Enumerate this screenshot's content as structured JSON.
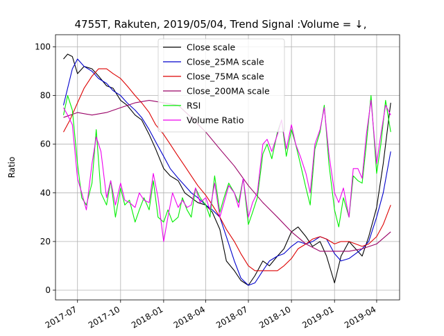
{
  "chart_data": {
    "type": "line",
    "title": "4755T, Rakuten, 2019/05/04, Trend Signal :Volume = ↓,",
    "xlabel": "",
    "ylabel": "Ratio",
    "xlim": [
      "2017-05-15",
      "2019-05-20"
    ],
    "ylim": [
      -4,
      105
    ],
    "x_ticks": [
      {
        "date": "2017-07-01",
        "label": "2017-07"
      },
      {
        "date": "2017-10-01",
        "label": "2017-10"
      },
      {
        "date": "2018-01-01",
        "label": "2018-01"
      },
      {
        "date": "2018-04-01",
        "label": "2018-04"
      },
      {
        "date": "2018-07-01",
        "label": "2018-07"
      },
      {
        "date": "2018-10-01",
        "label": "2018-10"
      },
      {
        "date": "2019-01-01",
        "label": "2019-01"
      },
      {
        "date": "2019-04-01",
        "label": "2019-04"
      }
    ],
    "y_ticks": [
      0,
      20,
      40,
      60,
      80,
      100
    ],
    "grid": true,
    "legend_position": "top-center",
    "series": [
      {
        "name": "Close scale",
        "color": "#000000",
        "x": [
          "2017-06-01",
          "2017-06-10",
          "2017-06-20",
          "2017-07-01",
          "2017-07-15",
          "2017-08-01",
          "2017-08-15",
          "2017-09-01",
          "2017-09-15",
          "2017-10-01",
          "2017-10-15",
          "2017-11-01",
          "2017-11-15",
          "2017-12-01",
          "2017-12-15",
          "2018-01-01",
          "2018-01-15",
          "2018-02-01",
          "2018-02-15",
          "2018-03-01",
          "2018-03-15",
          "2018-04-01",
          "2018-04-15",
          "2018-05-01",
          "2018-05-15",
          "2018-06-01",
          "2018-06-15",
          "2018-07-01",
          "2018-07-15",
          "2018-08-01",
          "2018-08-15",
          "2018-09-01",
          "2018-09-15",
          "2018-10-01",
          "2018-10-15",
          "2018-11-01",
          "2018-11-15",
          "2018-12-01",
          "2018-12-15",
          "2019-01-01",
          "2019-01-15",
          "2019-02-01",
          "2019-02-15",
          "2019-03-01",
          "2019-03-15",
          "2019-04-01",
          "2019-04-15",
          "2019-05-01"
        ],
        "y": [
          95,
          97,
          96,
          89,
          92,
          91,
          88,
          84,
          83,
          78,
          76,
          72,
          70,
          64,
          58,
          50,
          47,
          45,
          40,
          38,
          36,
          35,
          32,
          25,
          12,
          8,
          4,
          2,
          6,
          12,
          10,
          14,
          17,
          24,
          26,
          22,
          18,
          20,
          14,
          3,
          14,
          20,
          17,
          14,
          22,
          34,
          52,
          77
        ]
      },
      {
        "name": "Close_25MA scale",
        "color": "#0000cc",
        "x": [
          "2017-06-01",
          "2017-06-20",
          "2017-07-01",
          "2017-07-15",
          "2017-08-01",
          "2017-08-15",
          "2017-09-01",
          "2017-09-15",
          "2017-10-01",
          "2017-10-15",
          "2017-11-01",
          "2017-11-15",
          "2017-12-01",
          "2017-12-15",
          "2018-01-01",
          "2018-01-15",
          "2018-02-01",
          "2018-02-15",
          "2018-03-01",
          "2018-03-15",
          "2018-04-01",
          "2018-04-15",
          "2018-05-01",
          "2018-05-15",
          "2018-06-01",
          "2018-06-15",
          "2018-07-01",
          "2018-07-15",
          "2018-08-01",
          "2018-08-15",
          "2018-09-01",
          "2018-09-15",
          "2018-10-01",
          "2018-10-15",
          "2018-11-01",
          "2018-11-15",
          "2018-12-01",
          "2018-12-15",
          "2019-01-01",
          "2019-01-15",
          "2019-02-01",
          "2019-02-15",
          "2019-03-01",
          "2019-03-15",
          "2019-04-01",
          "2019-04-15",
          "2019-05-01"
        ],
        "y": [
          76,
          91,
          95,
          92,
          90,
          87,
          85,
          82,
          80,
          77,
          74,
          71,
          66,
          61,
          55,
          50,
          46,
          43,
          40,
          38,
          35,
          33,
          30,
          22,
          12,
          5,
          2,
          3,
          8,
          12,
          14,
          15,
          18,
          20,
          19,
          20,
          22,
          21,
          15,
          12,
          13,
          15,
          17,
          20,
          30,
          40,
          57
        ]
      },
      {
        "name": "Close_75MA scale",
        "color": "#dd0000",
        "x": [
          "2017-06-01",
          "2017-06-15",
          "2017-07-01",
          "2017-07-15",
          "2017-08-01",
          "2017-08-15",
          "2017-09-01",
          "2017-09-15",
          "2017-10-01",
          "2017-10-15",
          "2017-11-01",
          "2017-11-15",
          "2017-12-01",
          "2017-12-15",
          "2018-01-01",
          "2018-01-15",
          "2018-02-01",
          "2018-02-15",
          "2018-03-01",
          "2018-03-15",
          "2018-04-01",
          "2018-04-15",
          "2018-05-01",
          "2018-05-15",
          "2018-06-01",
          "2018-06-15",
          "2018-07-01",
          "2018-07-15",
          "2018-08-01",
          "2018-08-15",
          "2018-09-01",
          "2018-09-15",
          "2018-10-01",
          "2018-10-15",
          "2018-11-01",
          "2018-11-15",
          "2018-12-01",
          "2018-12-15",
          "2019-01-01",
          "2019-01-15",
          "2019-02-01",
          "2019-02-15",
          "2019-03-01",
          "2019-03-15",
          "2019-04-01",
          "2019-04-15",
          "2019-05-01"
        ],
        "y": [
          65,
          70,
          77,
          83,
          88,
          91,
          91,
          89,
          87,
          84,
          80,
          77,
          73,
          68,
          64,
          60,
          55,
          51,
          47,
          43,
          39,
          35,
          30,
          25,
          20,
          15,
          10,
          8,
          8,
          8,
          8,
          10,
          13,
          17,
          19,
          21,
          22,
          21,
          19,
          20,
          20,
          19,
          18,
          19,
          22,
          27,
          35
        ]
      },
      {
        "name": "Close_200MA scale",
        "color": "#990066",
        "x": [
          "2017-06-01",
          "2017-07-01",
          "2017-08-01",
          "2017-09-01",
          "2017-10-01",
          "2017-11-01",
          "2017-12-01",
          "2018-01-01",
          "2018-02-01",
          "2018-03-01",
          "2018-04-01",
          "2018-05-01",
          "2018-06-01",
          "2018-07-01",
          "2018-08-01",
          "2018-09-01",
          "2018-10-01",
          "2018-11-01",
          "2018-12-01",
          "2019-01-01",
          "2019-02-01",
          "2019-03-01",
          "2019-04-01",
          "2019-05-01"
        ],
        "y": [
          71,
          73,
          72,
          73,
          75,
          77,
          78,
          77,
          76,
          71,
          65,
          58,
          51,
          43,
          36,
          30,
          24,
          19,
          16,
          16,
          16,
          17,
          19,
          24
        ]
      },
      {
        "name": "RSI",
        "color": "#00ee00",
        "x": [
          "2017-06-01",
          "2017-06-10",
          "2017-06-20",
          "2017-07-01",
          "2017-07-10",
          "2017-07-20",
          "2017-08-01",
          "2017-08-10",
          "2017-08-20",
          "2017-09-01",
          "2017-09-10",
          "2017-09-20",
          "2017-10-01",
          "2017-10-10",
          "2017-10-20",
          "2017-11-01",
          "2017-11-10",
          "2017-11-20",
          "2017-12-01",
          "2017-12-10",
          "2017-12-20",
          "2018-01-01",
          "2018-01-10",
          "2018-01-20",
          "2018-02-01",
          "2018-02-10",
          "2018-02-20",
          "2018-03-01",
          "2018-03-10",
          "2018-03-20",
          "2018-04-01",
          "2018-04-10",
          "2018-04-20",
          "2018-05-01",
          "2018-05-10",
          "2018-05-20",
          "2018-06-01",
          "2018-06-10",
          "2018-06-20",
          "2018-07-01",
          "2018-07-10",
          "2018-07-20",
          "2018-08-01",
          "2018-08-10",
          "2018-08-20",
          "2018-09-01",
          "2018-09-10",
          "2018-09-20",
          "2018-10-01",
          "2018-10-10",
          "2018-10-20",
          "2018-11-01",
          "2018-11-10",
          "2018-11-20",
          "2018-12-01",
          "2018-12-10",
          "2018-12-20",
          "2019-01-01",
          "2019-01-10",
          "2019-01-20",
          "2019-02-01",
          "2019-02-10",
          "2019-02-20",
          "2019-03-01",
          "2019-03-10",
          "2019-03-20",
          "2019-04-01",
          "2019-04-10",
          "2019-04-20",
          "2019-05-01"
        ],
        "y": [
          72,
          80,
          74,
          52,
          38,
          35,
          44,
          66,
          40,
          35,
          45,
          30,
          42,
          35,
          37,
          28,
          33,
          38,
          33,
          45,
          30,
          28,
          33,
          28,
          30,
          38,
          33,
          30,
          42,
          38,
          35,
          30,
          47,
          32,
          38,
          44,
          40,
          36,
          46,
          27,
          32,
          38,
          56,
          60,
          54,
          65,
          70,
          55,
          66,
          60,
          52,
          42,
          35,
          58,
          65,
          76,
          52,
          33,
          26,
          38,
          30,
          47,
          45,
          44,
          60,
          80,
          48,
          60,
          78,
          65
        ]
      },
      {
        "name": "Volume Ratio",
        "color": "#ee00ee",
        "x": [
          "2017-06-01",
          "2017-06-10",
          "2017-06-20",
          "2017-07-01",
          "2017-07-10",
          "2017-07-20",
          "2017-08-01",
          "2017-08-10",
          "2017-08-20",
          "2017-09-01",
          "2017-09-10",
          "2017-09-20",
          "2017-10-01",
          "2017-10-10",
          "2017-10-20",
          "2017-11-01",
          "2017-11-10",
          "2017-11-20",
          "2017-12-01",
          "2017-12-10",
          "2017-12-20",
          "2018-01-01",
          "2018-01-10",
          "2018-01-20",
          "2018-02-01",
          "2018-02-10",
          "2018-02-20",
          "2018-03-01",
          "2018-03-10",
          "2018-03-20",
          "2018-04-01",
          "2018-04-10",
          "2018-04-20",
          "2018-05-01",
          "2018-05-10",
          "2018-05-20",
          "2018-06-01",
          "2018-06-10",
          "2018-06-20",
          "2018-07-01",
          "2018-07-10",
          "2018-07-20",
          "2018-08-01",
          "2018-08-10",
          "2018-08-20",
          "2018-09-01",
          "2018-09-10",
          "2018-09-20",
          "2018-10-01",
          "2018-10-10",
          "2018-10-20",
          "2018-11-01",
          "2018-11-10",
          "2018-11-20",
          "2018-12-01",
          "2018-12-10",
          "2018-12-20",
          "2019-01-01",
          "2019-01-10",
          "2019-01-20",
          "2019-02-01",
          "2019-02-10",
          "2019-02-20",
          "2019-03-01",
          "2019-03-10",
          "2019-03-20",
          "2019-04-01",
          "2019-04-10",
          "2019-04-20",
          "2019-05-01"
        ],
        "y": [
          75,
          72,
          68,
          46,
          40,
          33,
          52,
          63,
          57,
          38,
          45,
          35,
          44,
          37,
          36,
          34,
          40,
          37,
          36,
          48,
          38,
          20,
          30,
          40,
          34,
          37,
          34,
          35,
          42,
          36,
          38,
          33,
          44,
          30,
          36,
          43,
          40,
          34,
          46,
          30,
          36,
          40,
          60,
          62,
          57,
          64,
          70,
          58,
          68,
          60,
          55,
          48,
          40,
          60,
          66,
          75,
          56,
          40,
          36,
          42,
          30,
          50,
          50,
          46,
          64,
          78,
          52,
          64,
          76,
          72
        ]
      }
    ]
  }
}
